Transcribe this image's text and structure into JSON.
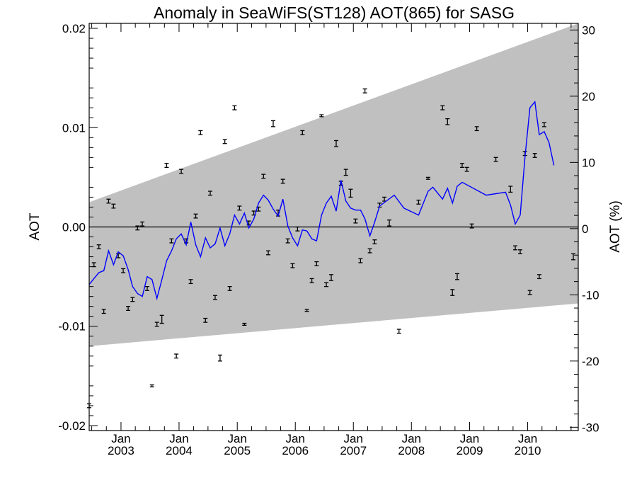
{
  "chart_data": {
    "type": "scatter",
    "title": "Anomaly in SeaWiFS(ST128) AOT(865) for SASG",
    "ylabel": "AOT",
    "ylabel_right": "AOT (%)",
    "xlabel": "",
    "xlim": [
      "2002-06-15",
      "2010-11-15"
    ],
    "ylim": [
      -0.0205,
      0.0205
    ],
    "ylim_right": [
      -30.5,
      31
    ],
    "x_ticks": [
      {
        "month": "Jan",
        "year": "2003",
        "date": "2003-01-01"
      },
      {
        "month": "Jan",
        "year": "2004",
        "date": "2004-01-01"
      },
      {
        "month": "Jan",
        "year": "2005",
        "date": "2005-01-01"
      },
      {
        "month": "Jan",
        "year": "2006",
        "date": "2006-01-01"
      },
      {
        "month": "Jan",
        "year": "2007",
        "date": "2007-01-01"
      },
      {
        "month": "Jan",
        "year": "2008",
        "date": "2008-01-01"
      },
      {
        "month": "Jan",
        "year": "2009",
        "date": "2009-01-01"
      },
      {
        "month": "Jan",
        "year": "2010",
        "date": "2010-01-01"
      }
    ],
    "y_ticks": [
      "-0.02",
      "-0.01",
      "0.00",
      "0.01",
      "0.02"
    ],
    "y_ticks_right": [
      "-30",
      "-20",
      "-10",
      "0",
      "10",
      "20",
      "30"
    ],
    "band": {
      "color": "#c0c0c0",
      "upper": [
        [
          "2002-06-15",
          0.0025
        ],
        [
          "2010-11-15",
          0.0205
        ]
      ],
      "lower": [
        [
          "2002-06-15",
          -0.012
        ],
        [
          "2010-11-15",
          -0.0077
        ]
      ]
    },
    "zero_line": 0,
    "series": [
      {
        "type": "errorbar",
        "color": "#000000",
        "points": [
          [
            "2002-06-15",
            -0.018,
            0.0002
          ],
          [
            "2002-07-15",
            -0.0038,
            0.0002
          ],
          [
            "2002-08-15",
            -0.002,
            0.0002
          ],
          [
            "2002-09-15",
            -0.0085,
            0.0002
          ],
          [
            "2002-10-15",
            0.0026,
            0.0002
          ],
          [
            "2002-11-15",
            0.0021,
            0.0002
          ],
          [
            "2002-12-15",
            -0.0029,
            0.0002
          ],
          [
            "2003-01-15",
            -0.0044,
            0.0002
          ],
          [
            "2003-02-15",
            -0.0082,
            0.0002
          ],
          [
            "2003-03-15",
            -0.0073,
            0.0002
          ],
          [
            "2003-04-15",
            -0.0001,
            0.0002
          ],
          [
            "2003-05-15",
            0.0003,
            0.0002
          ],
          [
            "2003-06-15",
            -0.0062,
            0.0002
          ],
          [
            "2003-07-15",
            -0.016,
            0.0001
          ],
          [
            "2003-08-15",
            -0.0098,
            0.0002
          ],
          [
            "2003-09-15",
            -0.0093,
            0.0004
          ],
          [
            "2003-10-15",
            0.0062,
            0.0002
          ],
          [
            "2003-11-15",
            -0.0014,
            0.0002
          ],
          [
            "2003-12-15",
            -0.013,
            0.0002
          ],
          [
            "2004-01-15",
            0.0056,
            0.0002
          ],
          [
            "2004-02-15",
            -0.0014,
            0.0002
          ],
          [
            "2004-03-15",
            -0.0055,
            0.0002
          ],
          [
            "2004-04-15",
            0.0011,
            0.0002
          ],
          [
            "2004-05-15",
            0.0095,
            0.0002
          ],
          [
            "2004-06-15",
            -0.0094,
            0.0002
          ],
          [
            "2004-07-15",
            0.0034,
            0.0002
          ],
          [
            "2004-08-15",
            -0.0071,
            0.0002
          ],
          [
            "2004-09-15",
            -0.0132,
            0.0003
          ],
          [
            "2004-10-15",
            0.0086,
            0.0002
          ],
          [
            "2004-11-15",
            -0.0062,
            0.0002
          ],
          [
            "2004-12-15",
            0.012,
            0.0002
          ],
          [
            "2005-01-15",
            0.0019,
            0.0002
          ],
          [
            "2005-02-15",
            -0.0098,
            0.0001
          ],
          [
            "2005-03-15",
            0.0004,
            0.0002
          ],
          [
            "2005-04-15",
            0.0014,
            0.0002
          ],
          [
            "2005-05-15",
            0.0018,
            0.0002
          ],
          [
            "2005-06-15",
            0.0051,
            0.0002
          ],
          [
            "2005-07-15",
            -0.0026,
            0.0002
          ],
          [
            "2005-08-15",
            0.0104,
            0.0003
          ],
          [
            "2005-09-15",
            0.0014,
            0.0003
          ],
          [
            "2005-10-15",
            0.0046,
            0.0002
          ],
          [
            "2005-11-15",
            -0.0014,
            0.0002
          ],
          [
            "2005-12-15",
            -0.0039,
            0.0002
          ],
          [
            "2006-01-15",
            -0.0002,
            0.0002
          ],
          [
            "2006-02-15",
            0.0095,
            0.0002
          ],
          [
            "2006-03-15",
            -0.0084,
            0.0001
          ],
          [
            "2006-04-15",
            -0.0054,
            0.0002
          ],
          [
            "2006-05-15",
            -0.0037,
            0.0002
          ],
          [
            "2006-06-15",
            0.0112,
            0.0001
          ],
          [
            "2006-07-15",
            -0.0058,
            0.0002
          ],
          [
            "2006-08-15",
            -0.0051,
            0.0003
          ],
          [
            "2006-09-15",
            0.0084,
            0.0003
          ],
          [
            "2006-10-15",
            0.0044,
            0.0002
          ],
          [
            "2006-11-15",
            0.0055,
            0.0003
          ],
          [
            "2006-12-15",
            0.0034,
            0.0004
          ],
          [
            "2007-01-15",
            0.0006,
            0.0002
          ],
          [
            "2007-02-15",
            -0.0034,
            0.0002
          ],
          [
            "2007-03-15",
            0.0137,
            0.0002
          ],
          [
            "2007-04-15",
            -0.0024,
            0.0002
          ],
          [
            "2007-05-15",
            -0.0015,
            0.0002
          ],
          [
            "2007-06-15",
            0.0022,
            0.0002
          ],
          [
            "2007-07-15",
            0.0028,
            0.0002
          ],
          [
            "2007-08-15",
            0.0004,
            0.0003
          ],
          [
            "2007-10-15",
            -0.0105,
            0.0002
          ],
          [
            "2008-02-15",
            0.0025,
            0.0002
          ],
          [
            "2008-04-15",
            0.0049,
            0.0001
          ],
          [
            "2008-07-15",
            0.012,
            0.0002
          ],
          [
            "2008-08-15",
            0.0106,
            0.0003
          ],
          [
            "2008-09-15",
            -0.0066,
            0.0003
          ],
          [
            "2008-10-15",
            -0.005,
            0.0003
          ],
          [
            "2008-11-15",
            0.0062,
            0.0002
          ],
          [
            "2008-12-15",
            0.0058,
            0.0002
          ],
          [
            "2009-01-15",
            0.0001,
            0.0002
          ],
          [
            "2009-02-15",
            0.0099,
            0.0002
          ],
          [
            "2009-06-15",
            0.0068,
            0.0002
          ],
          [
            "2009-09-15",
            0.0038,
            0.0003
          ],
          [
            "2009-10-15",
            -0.0021,
            0.0002
          ],
          [
            "2009-11-15",
            -0.0025,
            0.0002
          ],
          [
            "2009-12-15",
            0.0074,
            0.0002
          ],
          [
            "2010-01-15",
            -0.0066,
            0.0002
          ],
          [
            "2010-02-15",
            0.0072,
            0.0002
          ],
          [
            "2010-03-15",
            -0.005,
            0.0002
          ],
          [
            "2010-04-15",
            0.0103,
            0.0002
          ],
          [
            "2010-10-15",
            -0.003,
            0.0003
          ]
        ]
      },
      {
        "type": "line",
        "color": "#0000ff",
        "points": [
          [
            "2002-06-15",
            -0.0058
          ],
          [
            "2002-07-15",
            -0.0052
          ],
          [
            "2002-08-15",
            -0.0046
          ],
          [
            "2002-09-15",
            -0.0044
          ],
          [
            "2002-10-15",
            -0.0024
          ],
          [
            "2002-11-15",
            -0.0038
          ],
          [
            "2002-12-15",
            -0.0025
          ],
          [
            "2003-01-15",
            -0.0029
          ],
          [
            "2003-02-15",
            -0.0043
          ],
          [
            "2003-03-15",
            -0.006
          ],
          [
            "2003-04-15",
            -0.0067
          ],
          [
            "2003-05-15",
            -0.007
          ],
          [
            "2003-06-15",
            -0.005
          ],
          [
            "2003-07-15",
            -0.0053
          ],
          [
            "2003-08-15",
            -0.0072
          ],
          [
            "2003-09-15",
            -0.0053
          ],
          [
            "2003-10-15",
            -0.0034
          ],
          [
            "2003-11-15",
            -0.0024
          ],
          [
            "2003-12-15",
            -0.0012
          ],
          [
            "2004-01-15",
            -0.0007
          ],
          [
            "2004-02-15",
            -0.0018
          ],
          [
            "2004-03-15",
            0.0005
          ],
          [
            "2004-04-15",
            -0.0018
          ],
          [
            "2004-05-15",
            -0.003
          ],
          [
            "2004-06-15",
            -0.0011
          ],
          [
            "2004-07-15",
            -0.0021
          ],
          [
            "2004-08-15",
            -0.0017
          ],
          [
            "2004-09-15",
            -0.0001
          ],
          [
            "2004-10-15",
            -0.0019
          ],
          [
            "2004-11-15",
            -0.0007
          ],
          [
            "2004-12-15",
            0.0012
          ],
          [
            "2005-01-15",
            0.0003
          ],
          [
            "2005-02-15",
            0.0014
          ],
          [
            "2005-03-15",
            -0.0001
          ],
          [
            "2005-04-15",
            0.0008
          ],
          [
            "2005-05-15",
            0.0024
          ],
          [
            "2005-06-15",
            0.0032
          ],
          [
            "2005-07-15",
            0.0027
          ],
          [
            "2005-08-15",
            0.0018
          ],
          [
            "2005-09-15",
            0.0011
          ],
          [
            "2005-10-15",
            0.0028
          ],
          [
            "2005-11-15",
            0.0001
          ],
          [
            "2005-12-15",
            -0.0011
          ],
          [
            "2006-01-15",
            -0.0019
          ],
          [
            "2006-02-15",
            -0.0003
          ],
          [
            "2006-03-15",
            -0.0004
          ],
          [
            "2006-04-15",
            -0.0012
          ],
          [
            "2006-05-15",
            -0.0014
          ],
          [
            "2006-06-15",
            0.0012
          ],
          [
            "2006-07-15",
            0.0024
          ],
          [
            "2006-08-15",
            0.0031
          ],
          [
            "2006-09-15",
            0.0016
          ],
          [
            "2006-10-15",
            0.0047
          ],
          [
            "2006-11-15",
            0.0026
          ],
          [
            "2006-12-15",
            0.0019
          ],
          [
            "2007-01-15",
            0.0017
          ],
          [
            "2007-02-15",
            0.0017
          ],
          [
            "2007-03-15",
            0.0008
          ],
          [
            "2007-04-15",
            -0.0009
          ],
          [
            "2007-05-15",
            0.0005
          ],
          [
            "2007-06-15",
            0.0021
          ],
          [
            "2007-09-15",
            0.0032
          ],
          [
            "2007-11-15",
            0.0019
          ],
          [
            "2008-02-15",
            0.0012
          ],
          [
            "2008-04-15",
            0.0036
          ],
          [
            "2008-05-15",
            0.004
          ],
          [
            "2008-07-15",
            0.0028
          ],
          [
            "2008-08-15",
            0.0039
          ],
          [
            "2008-09-15",
            0.0024
          ],
          [
            "2008-10-15",
            0.0041
          ],
          [
            "2008-11-15",
            0.0045
          ],
          [
            "2009-04-15",
            0.0032
          ],
          [
            "2009-08-15",
            0.0035
          ],
          [
            "2009-09-15",
            0.0022
          ],
          [
            "2009-10-15",
            0.0003
          ],
          [
            "2009-11-15",
            0.0012
          ],
          [
            "2009-12-15",
            0.007
          ],
          [
            "2010-01-15",
            0.012
          ],
          [
            "2010-02-15",
            0.0126
          ],
          [
            "2010-03-15",
            0.0093
          ],
          [
            "2010-04-15",
            0.0096
          ],
          [
            "2010-05-15",
            0.0085
          ],
          [
            "2010-06-15",
            0.0062
          ]
        ]
      }
    ]
  }
}
